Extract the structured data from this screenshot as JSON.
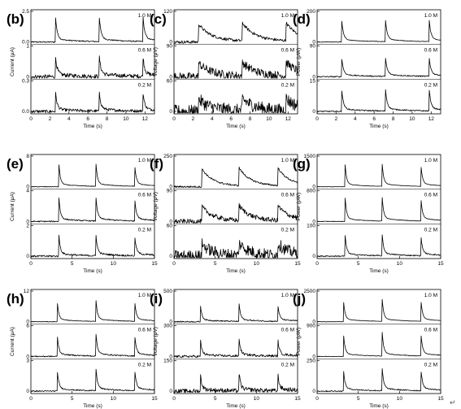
{
  "figure": {
    "return_mark": "↵"
  },
  "chart_data": [
    {
      "type": "line",
      "label": "(b)",
      "ylabel": "Current (μA)",
      "xlabel": "Time (s)",
      "xlim": [
        0,
        13
      ],
      "xticks": [
        "0",
        "2",
        "4",
        "6",
        "8",
        "10",
        "12"
      ],
      "spikes": [
        2.6,
        7.2,
        11.8
      ],
      "style": "spike",
      "rows": [
        {
          "conc": "1.0 M",
          "ymax_label": "2.5",
          "ymin_label": "0.0",
          "peak": 0.8,
          "noise": 0.02
        },
        {
          "conc": "0.6 M",
          "ymax_label": "1",
          "ymin_label": "0",
          "peak": 0.65,
          "noise": 0.07
        },
        {
          "conc": "0.2 M",
          "ymax_label": "0.3",
          "ymin_label": "0.0",
          "peak": 0.6,
          "noise": 0.05
        }
      ]
    },
    {
      "type": "line",
      "label": "(c)",
      "ylabel": "Voltage (μV)",
      "xlabel": "Time (s)",
      "xlim": [
        0,
        13
      ],
      "xticks": [
        "0",
        "2",
        "4",
        "6",
        "8",
        "10",
        "12"
      ],
      "spikes": [
        2.6,
        7.2,
        11.8
      ],
      "style": "decay",
      "rows": [
        {
          "conc": "1.0 M",
          "ymax_label": "120",
          "ymin_label": "0",
          "peak": 0.6,
          "noise": 0.05
        },
        {
          "conc": "0.6 M",
          "ymax_label": "90",
          "ymin_label": "0",
          "peak": 0.45,
          "noise": 0.14
        },
        {
          "conc": "0.2 M",
          "ymax_label": "60",
          "ymin_label": "0",
          "peak": 0.4,
          "noise": 0.22
        }
      ]
    },
    {
      "type": "line",
      "label": "(d)",
      "ylabel": "Power (pW)",
      "xlabel": "Time (s)",
      "xlim": [
        0,
        13
      ],
      "xticks": [
        "0",
        "2",
        "4",
        "6",
        "8",
        "10",
        "12"
      ],
      "spikes": [
        2.6,
        7.2,
        11.8
      ],
      "style": "spike",
      "rows": [
        {
          "conc": "1.0 M",
          "ymax_label": "200",
          "ymin_label": "0",
          "peak": 0.7,
          "noise": 0.01
        },
        {
          "conc": "0.6 M",
          "ymax_label": "90",
          "ymin_label": "0",
          "peak": 0.6,
          "noise": 0.02
        },
        {
          "conc": "0.2 M",
          "ymax_label": "15",
          "ymin_label": "0",
          "peak": 0.7,
          "noise": 0.02
        }
      ]
    },
    {
      "type": "line",
      "label": "(e)",
      "ylabel": "Current (μA)",
      "xlabel": "Time (s)",
      "xlim": [
        0,
        15
      ],
      "xticks": [
        "0",
        "5",
        "10",
        "15"
      ],
      "spikes": [
        3.4,
        7.9,
        12.6
      ],
      "style": "spike",
      "rows": [
        {
          "conc": "1.0 M",
          "ymax_label": "8",
          "ymin_label": "0",
          "peak": 0.75,
          "noise": 0.01
        },
        {
          "conc": "0.6 M",
          "ymax_label": "4",
          "ymin_label": "0",
          "peak": 0.8,
          "noise": 0.02
        },
        {
          "conc": "0.2 M",
          "ymax_label": "2",
          "ymin_label": "0",
          "peak": 0.7,
          "noise": 0.03
        }
      ]
    },
    {
      "type": "line",
      "label": "(f)",
      "ylabel": "Voltage (μV)",
      "xlabel": "Time (s)",
      "xlim": [
        0,
        15
      ],
      "xticks": [
        "0",
        "5",
        "10",
        "15"
      ],
      "spikes": [
        3.4,
        7.9,
        12.6
      ],
      "style": "decay",
      "rows": [
        {
          "conc": "1.0 M",
          "ymax_label": "250",
          "ymin_label": "0",
          "peak": 0.6,
          "noise": 0.03
        },
        {
          "conc": "0.6 M",
          "ymax_label": "90",
          "ymin_label": "0",
          "peak": 0.5,
          "noise": 0.08
        },
        {
          "conc": "0.2 M",
          "ymax_label": "60",
          "ymin_label": "0",
          "peak": 0.4,
          "noise": 0.2
        }
      ]
    },
    {
      "type": "line",
      "label": "(g)",
      "ylabel": "Power (pW)",
      "xlabel": "Time (s)",
      "xlim": [
        0,
        15
      ],
      "xticks": [
        "0",
        "5",
        "10",
        "15"
      ],
      "spikes": [
        3.4,
        7.9,
        12.6
      ],
      "style": "spike",
      "rows": [
        {
          "conc": "1.0 M",
          "ymax_label": "1500",
          "ymin_label": "0",
          "peak": 0.75,
          "noise": 0.005
        },
        {
          "conc": "0.6 M",
          "ymax_label": "800",
          "ymin_label": "0",
          "peak": 0.8,
          "noise": 0.01
        },
        {
          "conc": "0.2 M",
          "ymax_label": "100",
          "ymin_label": "0",
          "peak": 0.7,
          "noise": 0.02
        }
      ]
    },
    {
      "type": "line",
      "label": "(h)",
      "ylabel": "Current (μA)",
      "xlabel": "Time (s)",
      "xlim": [
        0,
        15
      ],
      "xticks": [
        "0",
        "5",
        "10",
        "15"
      ],
      "spikes": [
        3.2,
        7.9,
        12.6
      ],
      "style": "spike",
      "rows": [
        {
          "conc": "1.0 M",
          "ymax_label": "12",
          "ymin_label": "0",
          "peak": 0.7,
          "noise": 0.01
        },
        {
          "conc": "0.6 M",
          "ymax_label": "6",
          "ymin_label": "0",
          "peak": 0.75,
          "noise": 0.02
        },
        {
          "conc": "0.2 M",
          "ymax_label": "3",
          "ymin_label": "0",
          "peak": 0.75,
          "noise": 0.02
        }
      ]
    },
    {
      "type": "line",
      "label": "(i)",
      "ylabel": "Voltage (μV)",
      "xlabel": "Time (s)",
      "xlim": [
        0,
        15
      ],
      "xticks": [
        "0",
        "5",
        "10",
        "15"
      ],
      "spikes": [
        3.2,
        7.9,
        12.6
      ],
      "style": "spike",
      "rows": [
        {
          "conc": "1.0 M",
          "ymax_label": "500",
          "ymin_label": "0",
          "peak": 0.6,
          "noise": 0.02
        },
        {
          "conc": "0.6 M",
          "ymax_label": "300",
          "ymin_label": "0",
          "peak": 0.6,
          "noise": 0.04
        },
        {
          "conc": "0.2 M",
          "ymax_label": "150",
          "ymin_label": "0",
          "peak": 0.6,
          "noise": 0.07
        }
      ]
    },
    {
      "type": "line",
      "label": "(j)",
      "ylabel": "Power (pW)",
      "xlabel": "Time (s)",
      "xlim": [
        0,
        15
      ],
      "xticks": [
        "0",
        "5",
        "10",
        "15"
      ],
      "spikes": [
        3.2,
        7.9,
        12.6
      ],
      "style": "spike",
      "rows": [
        {
          "conc": "1.0 M",
          "ymax_label": "2500",
          "ymin_label": "0",
          "peak": 0.75,
          "noise": 0.005
        },
        {
          "conc": "0.6 M",
          "ymax_label": "900",
          "ymin_label": "0",
          "peak": 0.8,
          "noise": 0.01
        },
        {
          "conc": "0.2 M",
          "ymax_label": "250",
          "ymin_label": "0",
          "peak": 0.75,
          "noise": 0.02
        }
      ]
    }
  ]
}
